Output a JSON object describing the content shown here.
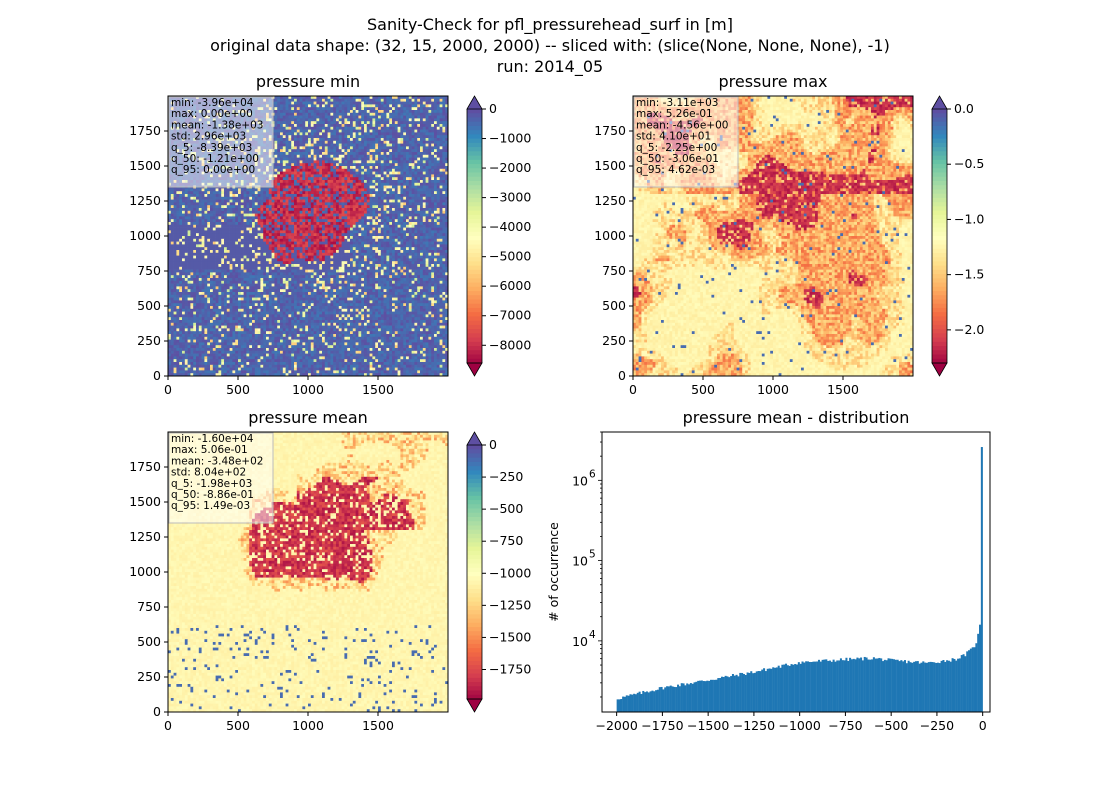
{
  "figure": {
    "title_lines": [
      "Sanity-Check for pfl_pressurehead_surf in [m]",
      "original data shape: (32, 15, 2000, 2000) -- sliced with: (slice(None, None, None), -1)",
      "run: 2014_05"
    ]
  },
  "chart_data": [
    {
      "type": "heatmap",
      "title": "pressure min",
      "x_ticks": [
        "0",
        "500",
        "1000",
        "1500"
      ],
      "x_tick_values": [
        0,
        500,
        1000,
        1500
      ],
      "y_ticks": [
        "0",
        "250",
        "500",
        "750",
        "1000",
        "1250",
        "1500",
        "1750"
      ],
      "y_tick_values": [
        0,
        250,
        500,
        750,
        1000,
        1250,
        1500,
        1750
      ],
      "xlim": [
        0,
        2000
      ],
      "ylim": [
        0,
        2000
      ],
      "colormap": "Spectral",
      "colorbar": {
        "ticks": [
          "0",
          "−1000",
          "−2000",
          "−3000",
          "−4000",
          "−5000",
          "−6000",
          "−7000",
          "−8000"
        ],
        "tick_values": [
          0,
          -1000,
          -2000,
          -3000,
          -4000,
          -5000,
          -6000,
          -7000,
          -8000
        ],
        "range": [
          -8600,
          0
        ],
        "extend": "both"
      },
      "stats": [
        "min: -3.96e+04",
        "max: 0.00e+00",
        "mean: -1.38e+03",
        "std: 2.96e+03",
        "q_5: -8.39e+03",
        "q_50: -1.21e+00",
        "q_95: 0.00e+00"
      ],
      "dominant_color": "#5e4fa2"
    },
    {
      "type": "heatmap",
      "title": "pressure max",
      "x_ticks": [
        "0",
        "500",
        "1000",
        "1500"
      ],
      "x_tick_values": [
        0,
        500,
        1000,
        1500
      ],
      "y_ticks": [
        "0",
        "250",
        "500",
        "750",
        "1000",
        "1250",
        "1500",
        "1750"
      ],
      "y_tick_values": [
        0,
        250,
        500,
        750,
        1000,
        1250,
        1500,
        1750
      ],
      "xlim": [
        0,
        2000
      ],
      "ylim": [
        0,
        2000
      ],
      "colormap": "Spectral",
      "colorbar": {
        "ticks": [
          "0.0",
          "−0.5",
          "−1.0",
          "−1.5",
          "−2.0"
        ],
        "tick_values": [
          0,
          -0.5,
          -1.0,
          -1.5,
          -2.0
        ],
        "range": [
          -2.3,
          0
        ],
        "extend": "both"
      },
      "stats": [
        "min: -3.11e+03",
        "max: 5.26e-01",
        "mean: -4.56e+00",
        "std: 4.10e+01",
        "q_5: -2.25e+00",
        "q_50: -3.06e-01",
        "q_95: 4.62e-03"
      ],
      "dominant_color": "#fdd98a"
    },
    {
      "type": "heatmap",
      "title": "pressure mean",
      "x_ticks": [
        "0",
        "500",
        "1000",
        "1500"
      ],
      "x_tick_values": [
        0,
        500,
        1000,
        1500
      ],
      "y_ticks": [
        "0",
        "250",
        "500",
        "750",
        "1000",
        "1250",
        "1500",
        "1750"
      ],
      "y_tick_values": [
        0,
        250,
        500,
        750,
        1000,
        1250,
        1500,
        1750
      ],
      "xlim": [
        0,
        2000
      ],
      "ylim": [
        0,
        2000
      ],
      "colormap": "Spectral",
      "colorbar": {
        "ticks": [
          "0",
          "−250",
          "−500",
          "−750",
          "−1000",
          "−1250",
          "−1500",
          "−1750"
        ],
        "tick_values": [
          0,
          -250,
          -500,
          -750,
          -1000,
          -1250,
          -1500,
          -1750
        ],
        "range": [
          -1980,
          0
        ],
        "extend": "both"
      },
      "stats": [
        "min: -1.60e+04",
        "max: 5.06e-01",
        "mean: -3.48e+02",
        "std: 8.04e+02",
        "q_5: -1.98e+03",
        "q_50: -8.86e-01",
        "q_95: 1.49e-03"
      ],
      "dominant_color": "#fef6b0"
    },
    {
      "type": "bar",
      "subtype": "histogram",
      "title": "pressure mean - distribution",
      "ylabel": "# of occurrence",
      "xlabel": "",
      "yscale": "log",
      "xlim": [
        -2080,
        40
      ],
      "ylim": [
        1300,
        4000000
      ],
      "x_ticks": [
        "−2000",
        "−1750",
        "−1500",
        "−1250",
        "−1000",
        "−750",
        "−500",
        "−250",
        "0"
      ],
      "x_tick_values": [
        -2000,
        -1750,
        -1500,
        -1250,
        -1000,
        -750,
        -500,
        -250,
        0
      ],
      "y_ticks": [
        "10",
        "10",
        "10"
      ],
      "y_tick_exponents": [
        "4",
        "5",
        "6"
      ],
      "y_tick_values": [
        10000,
        100000,
        1000000
      ],
      "bar_color": "#1f77b4",
      "bin_range": [
        -2000,
        0
      ],
      "bin_count": 200,
      "profile_x": [
        -2000,
        -1900,
        -1750,
        -1500,
        -1250,
        -1000,
        -750,
        -600,
        -500,
        -400,
        -300,
        -250,
        -150,
        -100,
        -50,
        -30,
        -15,
        -10,
        0
      ],
      "profile_y": [
        1900,
        2150,
        2600,
        3250,
        4100,
        5400,
        5850,
        6100,
        5700,
        5500,
        5300,
        5500,
        5900,
        6600,
        8200,
        10300,
        15500,
        25000,
        2600000
      ]
    }
  ]
}
